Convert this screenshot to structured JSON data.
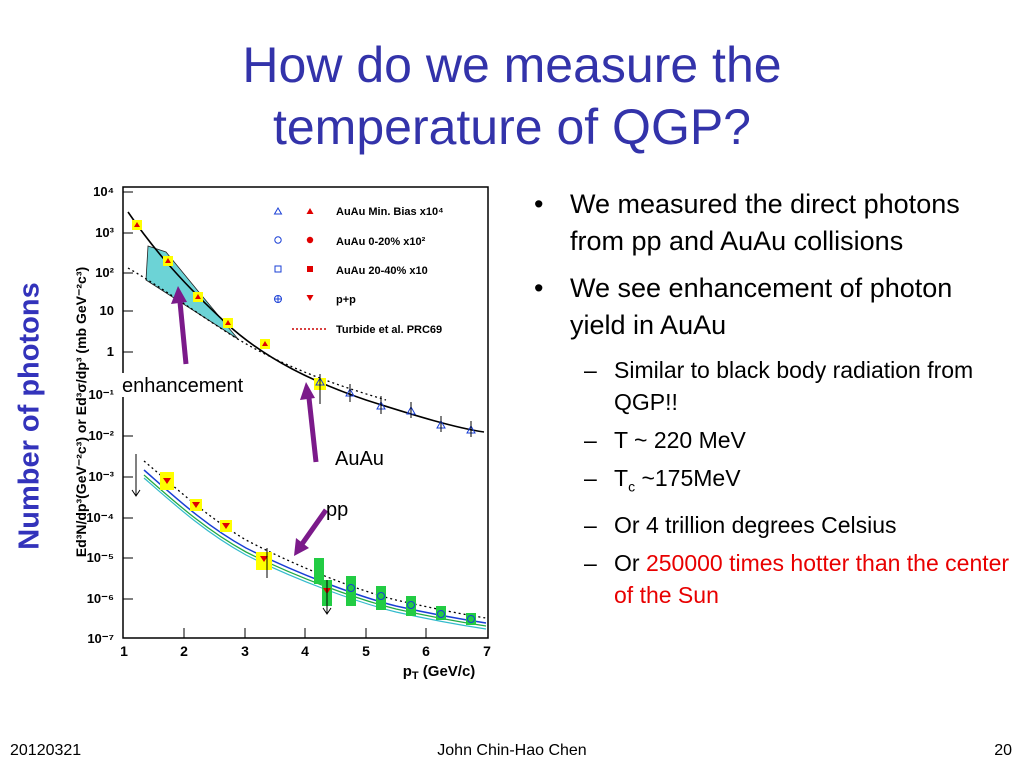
{
  "slide": {
    "title_line1": "How do we measure the",
    "title_line2": "temperature of QGP?",
    "side_label": "Number of photons",
    "bullets": [
      {
        "text": "We measured the direct photons from pp and AuAu collisions"
      },
      {
        "text": "We see enhancement of photon yield in AuAu"
      }
    ],
    "subbullets": {
      "s1": "Similar to black body radiation from QGP!!",
      "s2": "T ~ 220 MeV",
      "s3_T": "T",
      "s3_sub": "c",
      "s3_rest": " ~175MeV",
      "s4": "Or 4 trillion degrees Celsius",
      "s5_prefix": "Or ",
      "s5_red": "250000 times hotter than the center of the Sun"
    },
    "annotations": {
      "enhancement": "enhancement",
      "auau": "AuAu",
      "pp": "pp"
    },
    "footer": {
      "date": "20120321",
      "author": "John Chin-Hao Chen",
      "page": "20"
    },
    "colors": {
      "title": "#3333aa",
      "side_label": "#3333bb",
      "highlight_red": "#e80000",
      "arrow": "#7b1a8a",
      "band_fill": "#6cd3d6",
      "marker_box_yellow": "#ffff00",
      "marker_box_green": "#22cc44"
    }
  },
  "chart_data": {
    "type": "scatter",
    "yscale": "log",
    "xlabel": "p_T (GeV/c)",
    "ylabel": "Ed^3N/dp^3(GeV^-2c^3) or Ed^3σ/dp^3 (mb GeV^-2c^3)",
    "xlim": [
      0.75,
      7
    ],
    "ylim_exp": [
      -7,
      4
    ],
    "x_ticks": [
      "1",
      "2",
      "3",
      "4",
      "5",
      "6",
      "7"
    ],
    "y_ticks": [
      "10^4",
      "10^3",
      "10^2",
      "10",
      "1",
      "10^-1",
      "10^-2",
      "10^-3",
      "10^-4",
      "10^-5",
      "10^-6",
      "10^-7"
    ],
    "legend": [
      {
        "label": "AuAu Min. Bias x10^4",
        "color": "#1a3fd6",
        "marker": "triangle"
      },
      {
        "label": "AuAu 0-20% x10^2",
        "color": "#e00000",
        "marker": "circle"
      },
      {
        "label": "AuAu 20-40% x10",
        "color": "#e00000",
        "marker": "square"
      },
      {
        "label": "p+p",
        "color": "#e00000",
        "marker": "triangle-down"
      },
      {
        "label": "Turbide et al. PRC69",
        "color": "#cc0000",
        "marker": "dotted-line"
      }
    ],
    "auau_minbias": {
      "x": [
        1.2,
        1.7,
        2.2,
        2.7,
        3.35,
        4.25,
        4.75,
        5.25,
        5.75,
        6.25,
        6.75
      ],
      "y": [
        1500,
        160,
        20,
        5,
        1.4,
        0.18,
        0.08,
        0.04,
        0.03,
        0.015,
        0.01
      ]
    },
    "pp": {
      "x": [
        1.7,
        2.2,
        2.7,
        3.35,
        4.35,
        4.75,
        5.25,
        5.75,
        6.25,
        6.75
      ],
      "y": [
        0.0008,
        0.00017,
        5e-05,
        1e-05,
        9e-07,
        1.5e-06,
        8e-07,
        5e-07,
        2.5e-07,
        1.8e-07
      ]
    }
  }
}
